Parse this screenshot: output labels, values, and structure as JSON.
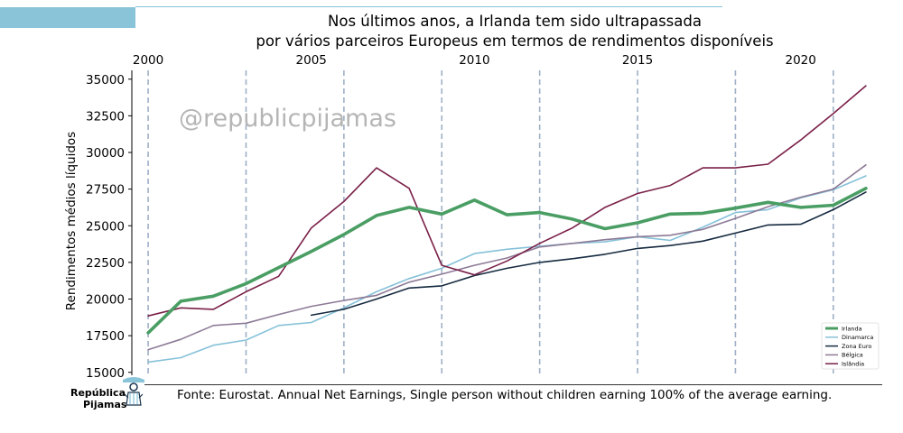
{
  "header": {
    "title_line1": "Nos últimos anos, a Irlanda tem sido ultrapassada",
    "title_line2": "por vários parceiros Europeus em termos de rendimentos disponíveis"
  },
  "watermark": "@republicpijamas",
  "footer": {
    "source": "Fonte: Eurostat. Annual Net Earnings, Single person without children earning 100% of the average earning.",
    "logo_line1": "República",
    "logo_line2": "Pijamas"
  },
  "colors": {
    "accent_bar": "#89c4d8",
    "Irlanda": "#4a9e64",
    "Dinamarca": "#86c1d9",
    "Zona Euro": "#162a40",
    "Bélgica": "#8c7a96",
    "Islândia": "#7a2048",
    "vline": "#9fb0c6"
  },
  "chart_data": {
    "type": "line",
    "title": "Nos últimos anos, a Irlanda tem sido ultrapassada por vários parceiros Europeus em termos de rendimentos disponíveis",
    "xlabel": "",
    "ylabel": "Rendimentos médios líquidos",
    "xlim": [
      1999.5,
      2022.5
    ],
    "ylim": [
      14800,
      35600
    ],
    "x_ticks": [
      2000,
      2005,
      2010,
      2015,
      2020
    ],
    "x_tick_labels": [
      "2000",
      "2005",
      "2010",
      "2015",
      "2020"
    ],
    "x_axis_position": "top",
    "y_ticks": [
      15000,
      17500,
      20000,
      22500,
      25000,
      27500,
      30000,
      32500,
      35000
    ],
    "y_tick_labels": [
      "15000",
      "17500",
      "20000",
      "22500",
      "25000",
      "27500",
      "30000",
      "32500",
      "35000"
    ],
    "vertical_lines": [
      2000,
      2003,
      2006,
      2009,
      2012,
      2015,
      2018,
      2021
    ],
    "grid": false,
    "legend_position": "bottom-right",
    "series": [
      {
        "name": "Irlanda",
        "x": [
          2000,
          2001,
          2002,
          2003,
          2004,
          2005,
          2006,
          2007,
          2008,
          2009,
          2010,
          2011,
          2012,
          2013,
          2014,
          2015,
          2016,
          2017,
          2018,
          2019,
          2020,
          2021,
          2022
        ],
        "values": [
          17700,
          19850,
          20200,
          21050,
          22150,
          23250,
          24400,
          25700,
          26250,
          25800,
          26750,
          25750,
          25900,
          25450,
          24800,
          25200,
          25800,
          25850,
          26200,
          26600,
          26250,
          26400,
          27550
        ]
      },
      {
        "name": "Dinamarca",
        "x": [
          2000,
          2001,
          2002,
          2003,
          2004,
          2005,
          2006,
          2007,
          2008,
          2009,
          2010,
          2011,
          2012,
          2013,
          2014,
          2015,
          2016,
          2017,
          2018,
          2019,
          2020,
          2021,
          2022
        ],
        "values": [
          15700,
          16000,
          16850,
          17200,
          18200,
          18400,
          19400,
          20500,
          21400,
          22100,
          23100,
          23400,
          23600,
          23800,
          23900,
          24250,
          24000,
          24900,
          25900,
          26100,
          26900,
          27450,
          28400
        ]
      },
      {
        "name": "Zona Euro",
        "x": [
          2005,
          2006,
          2007,
          2008,
          2009,
          2010,
          2011,
          2012,
          2013,
          2014,
          2015,
          2016,
          2017,
          2018,
          2019,
          2020,
          2021,
          2022
        ],
        "values": [
          18900,
          19300,
          20000,
          20750,
          20900,
          21600,
          22100,
          22500,
          22750,
          23050,
          23450,
          23650,
          23950,
          24500,
          25050,
          25100,
          26100,
          27300
        ]
      },
      {
        "name": "Bélgica",
        "x": [
          2000,
          2001,
          2002,
          2003,
          2004,
          2005,
          2006,
          2007,
          2008,
          2009,
          2010,
          2011,
          2012,
          2013,
          2014,
          2015,
          2016,
          2017,
          2018,
          2019,
          2020,
          2021,
          2022
        ],
        "values": [
          16550,
          17250,
          18200,
          18350,
          18950,
          19500,
          19900,
          20250,
          21150,
          21700,
          22300,
          22800,
          23550,
          23800,
          24050,
          24250,
          24350,
          24750,
          25500,
          26300,
          26950,
          27500,
          29150
        ]
      },
      {
        "name": "Islândia",
        "x": [
          2000,
          2001,
          2002,
          2003,
          2004,
          2005,
          2006,
          2007,
          2008,
          2009,
          2010,
          2011,
          2012,
          2013,
          2014,
          2015,
          2016,
          2017,
          2018,
          2019,
          2020,
          2021,
          2022
        ],
        "values": [
          18850,
          19400,
          19300,
          20500,
          21550,
          24850,
          26650,
          28950,
          27550,
          22300,
          21650,
          22600,
          23800,
          24850,
          26250,
          27200,
          27750,
          28950,
          28950,
          29200,
          30850,
          32650,
          34550
        ]
      }
    ]
  }
}
